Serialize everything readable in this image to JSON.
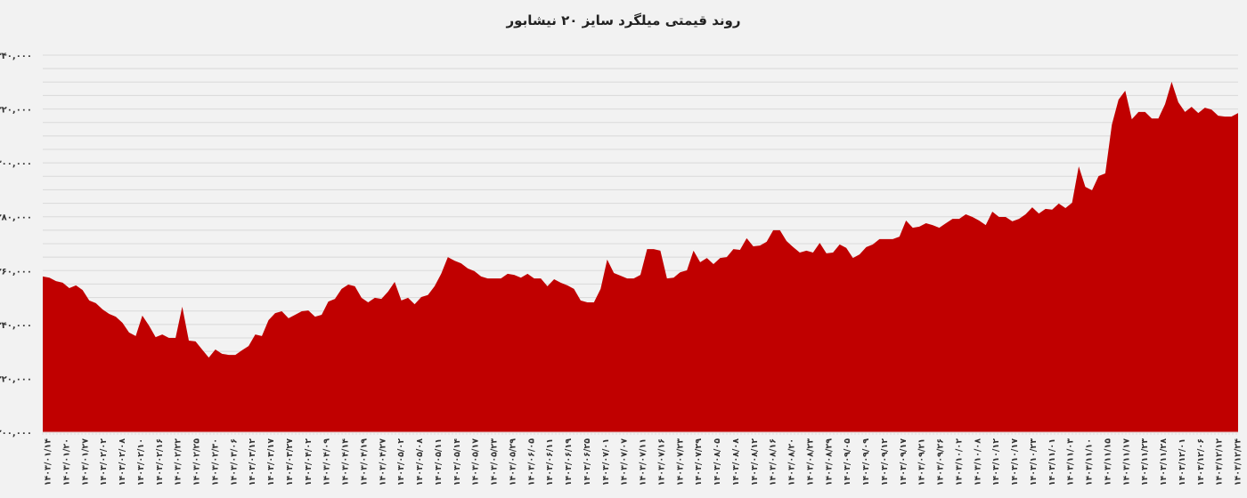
{
  "chart_data": {
    "type": "area",
    "title": "روند قیمتی میلگرد سایز ۲۰ نیشابور",
    "xlabel": "",
    "ylabel": "",
    "ylim": [
      200000,
      340000
    ],
    "grid": true,
    "fill_color": "#c00000",
    "background": "#f2f2f2",
    "y_ticks": [
      {
        "value": 200000,
        "label": "۲۰۰,۰۰۰"
      },
      {
        "value": 220000,
        "label": "۲۲۰,۰۰۰"
      },
      {
        "value": 240000,
        "label": "۲۴۰,۰۰۰"
      },
      {
        "value": 260000,
        "label": "۲۶۰,۰۰۰"
      },
      {
        "value": 280000,
        "label": "۲۸۰,۰۰۰"
      },
      {
        "value": 300000,
        "label": "۳۰۰,۰۰۰"
      },
      {
        "value": 320000,
        "label": "۳۲۰,۰۰۰"
      },
      {
        "value": 340000,
        "label": "۳۴۰,۰۰۰"
      }
    ],
    "x_tick_labels": [
      "۱۴۰۳/۰۱/۱۴",
      "۱۴۰۳/۰۱/۲۰",
      "۱۴۰۳/۰۱/۲۷",
      "۱۴۰۳/۰۲/۰۲",
      "۱۴۰۳/۰۲/۰۸",
      "۱۴۰۳/۰۲/۱۰",
      "۱۴۰۳/۰۲/۱۶",
      "۱۴۰۳/۰۲/۲۲",
      "۱۴۰۳/۰۲/۲۵",
      "۱۴۰۳/۰۲/۳۰",
      "۱۴۰۳/۰۳/۰۶",
      "۱۴۰۳/۰۳/۱۲",
      "۱۴۰۳/۰۳/۱۷",
      "۱۴۰۳/۰۳/۲۷",
      "۱۴۰۳/۰۴/۰۲",
      "۱۴۰۳/۰۴/۰۹",
      "۱۴۰۳/۰۴/۱۴",
      "۱۴۰۳/۰۴/۱۹",
      "۱۴۰۳/۰۴/۲۷",
      "۱۴۰۳/۰۵/۰۲",
      "۱۴۰۳/۰۵/۰۸",
      "۱۴۰۳/۰۵/۱۱",
      "۱۴۰۳/۰۵/۱۴",
      "۱۴۰۳/۰۵/۱۷",
      "۱۴۰۳/۰۵/۲۳",
      "۱۴۰۳/۰۵/۲۹",
      "۱۴۰۳/۰۶/۰۵",
      "۱۴۰۳/۰۶/۱۱",
      "۱۴۰۳/۰۶/۱۹",
      "۱۴۰۳/۰۶/۲۵",
      "۱۴۰۳/۰۷/۰۱",
      "۱۴۰۳/۰۷/۰۷",
      "۱۴۰۳/۰۷/۱۱",
      "۱۴۰۳/۰۷/۱۶",
      "۱۴۰۳/۰۷/۲۳",
      "۱۴۰۳/۰۷/۲۹",
      "۱۴۰۳/۰۸/۰۵",
      "۱۴۰۳/۰۸/۰۸",
      "۱۴۰۳/۰۸/۱۲",
      "۱۴۰۳/۰۸/۱۶",
      "۱۴۰۳/۰۸/۲۰",
      "۱۴۰۳/۰۸/۲۳",
      "۱۴۰۳/۰۸/۲۹",
      "۱۴۰۳/۰۹/۰۵",
      "۱۴۰۳/۰۹/۰۹",
      "۱۴۰۳/۰۹/۱۲",
      "۱۴۰۳/۰۹/۱۷",
      "۱۴۰۳/۰۹/۲۱",
      "۱۴۰۳/۰۹/۲۶",
      "۱۴۰۳/۱۰/۰۲",
      "۱۴۰۳/۱۰/۰۸",
      "۱۴۰۳/۱۰/۱۲",
      "۱۴۰۳/۱۰/۱۷",
      "۱۴۰۳/۱۰/۲۳",
      "۱۴۰۳/۱۱/۰۱",
      "۱۴۰۳/۱۱/۰۳",
      "۱۴۰۳/۱۱/۱۰",
      "۱۴۰۳/۱۱/۱۵",
      "۱۴۰۳/۱۱/۱۷",
      "۱۴۰۳/۱۱/۲۳",
      "۱۴۰۳/۱۱/۲۸",
      "۱۴۰۳/۱۲/۰۱",
      "۱۴۰۳/۱۲/۰۶",
      "۱۴۰۳/۱۲/۱۲",
      "۱۴۰۳/۱۲/۲۴"
    ],
    "values": [
      257800,
      257400,
      256100,
      255500,
      253500,
      254500,
      252800,
      248900,
      247900,
      245600,
      243900,
      242900,
      240600,
      237000,
      235700,
      243300,
      239600,
      235300,
      236300,
      235000,
      235000,
      246600,
      234000,
      233700,
      230700,
      227700,
      230700,
      229100,
      228700,
      228700,
      230400,
      232000,
      236300,
      235700,
      241600,
      244200,
      244900,
      242300,
      243600,
      244900,
      245200,
      242900,
      243600,
      248500,
      249500,
      253200,
      254800,
      254200,
      249900,
      248200,
      249900,
      249500,
      252200,
      255800,
      248900,
      249900,
      247500,
      250200,
      250900,
      254200,
      258800,
      265000,
      263700,
      262700,
      260800,
      259800,
      257800,
      257100,
      257100,
      257100,
      258800,
      258400,
      257400,
      258800,
      257100,
      257100,
      254200,
      256800,
      255500,
      254500,
      253200,
      248900,
      248200,
      248200,
      253200,
      264100,
      259100,
      258100,
      257100,
      257100,
      258400,
      268000,
      268000,
      267400,
      257100,
      257400,
      259400,
      260100,
      267400,
      263100,
      264700,
      262400,
      264700,
      265000,
      268000,
      267700,
      272000,
      269000,
      269300,
      270700,
      275000,
      275000,
      271000,
      268700,
      266700,
      267400,
      266700,
      270300,
      266400,
      266700,
      269700,
      268400,
      264700,
      266000,
      268700,
      269700,
      271700,
      271700,
      271700,
      272600,
      278600,
      275900,
      276300,
      277600,
      276900,
      275900,
      277600,
      279200,
      279200,
      280900,
      279900,
      278600,
      276900,
      281900,
      279900,
      279900,
      278300,
      279200,
      280900,
      283500,
      281200,
      282900,
      282600,
      284900,
      283200,
      285200,
      298700,
      291100,
      289800,
      295100,
      296100,
      314200,
      323500,
      326800,
      316200,
      318900,
      318900,
      316500,
      316500,
      321800,
      330100,
      322500,
      318900,
      320800,
      318500,
      320500,
      319800,
      317500,
      317200,
      317200,
      318500
    ]
  }
}
